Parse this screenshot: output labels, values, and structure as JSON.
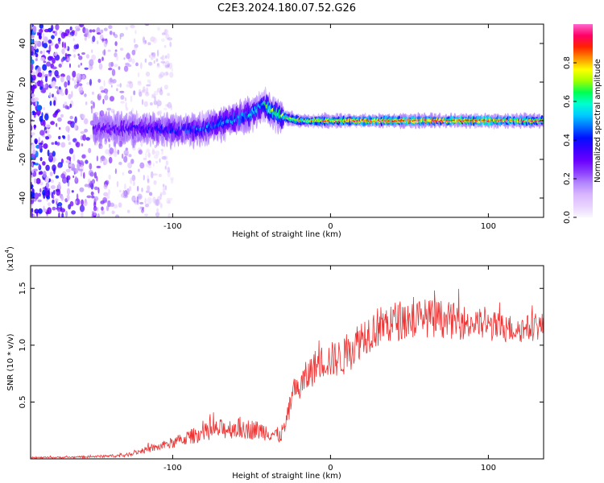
{
  "figure": {
    "title": "C2E3.2024.180.07.52.G26"
  },
  "colors": {
    "snr_line": "#ee3333",
    "frame": "#000000",
    "colormap": [
      "#f8f8ff",
      "#e8d2ff",
      "#d9b7ff",
      "#b487ff",
      "#8a3cff",
      "#6a00ff",
      "#3a00ff",
      "#0010ff",
      "#0070ff",
      "#00ccff",
      "#00ffd0",
      "#00ff50",
      "#a0ff00",
      "#ffff00",
      "#ff9000",
      "#ff2200",
      "#ff0066",
      "#ff66cc"
    ]
  },
  "chart_data": [
    {
      "type": "heatmap",
      "title": "C2E3.2024.180.07.52.G26",
      "xlabel": "Height of straight line (km)",
      "ylabel": "Frequency (Hz)",
      "xlim": [
        -190,
        135
      ],
      "ylim": [
        -50,
        50
      ],
      "xticks": [
        -100,
        0,
        100
      ],
      "yticks": [
        -40,
        -20,
        0,
        20,
        40
      ],
      "xtick_labels": [
        "-100",
        "0",
        "100"
      ],
      "ytick_labels": [
        "-40",
        "-20",
        "0",
        "20",
        "40"
      ],
      "colorbar": {
        "label": "Normalized spectral amplitude",
        "range": [
          0.0,
          1.0
        ],
        "ticks": [
          "0.0",
          "0.2",
          "0.4",
          "0.6",
          "0.8"
        ]
      },
      "signal_trace": {
        "x": [
          -150,
          -120,
          -100,
          -80,
          -60,
          -50,
          -42,
          -38,
          -30,
          -20,
          -10,
          0,
          20,
          50,
          100,
          135
        ],
        "frequency": [
          -4,
          -4,
          -5,
          -4,
          1,
          4,
          8,
          5,
          2,
          0,
          0,
          0,
          0,
          0,
          0,
          0
        ],
        "peak_amplitude": [
          0.3,
          0.35,
          0.4,
          0.45,
          0.5,
          0.55,
          0.55,
          0.65,
          0.7,
          0.75,
          0.8,
          0.85,
          0.9,
          0.9,
          0.9,
          0.85
        ]
      },
      "noise_region": {
        "x_start": -190,
        "x_end": -120,
        "frequency_span": [
          -50,
          50
        ]
      }
    },
    {
      "type": "line",
      "xlabel": "Height of straight line (km)",
      "ylabel": "SNR (10 * v/v)",
      "y_multiplier": "(x10",
      "y_multiplier_exponent": "4",
      "y_multiplier_close": ")",
      "xlim": [
        -190,
        135
      ],
      "ylim": [
        0,
        17000
      ],
      "xticks": [
        -100,
        0,
        100
      ],
      "yticks": [
        5000,
        10000,
        15000
      ],
      "xtick_labels": [
        "-100",
        "0",
        "100"
      ],
      "ytick_labels": [
        "0.5",
        "1.0",
        "1.5"
      ],
      "series": [
        {
          "x": [
            -190,
            -160,
            -130,
            -120,
            -110,
            -100,
            -90,
            -80,
            -70,
            -60,
            -50,
            -40,
            -32,
            -28,
            -25,
            -20,
            -15,
            -10,
            -5,
            0,
            10,
            20,
            30,
            40,
            50,
            60,
            70,
            80,
            90,
            100,
            110,
            120,
            135
          ],
          "values": [
            100,
            150,
            300,
            700,
            1000,
            1400,
            1900,
            2300,
            2600,
            2700,
            2600,
            2400,
            2000,
            3000,
            5200,
            6200,
            7200,
            8100,
            8600,
            8700,
            9000,
            10800,
            11600,
            12100,
            12300,
            12400,
            12300,
            12100,
            11900,
            11700,
            11500,
            11400,
            11700
          ],
          "jitter": [
            60,
            80,
            150,
            250,
            350,
            500,
            650,
            800,
            900,
            900,
            900,
            800,
            700,
            900,
            1300,
            1400,
            1500,
            1500,
            1500,
            1600,
            1700,
            1800,
            1800,
            1800,
            1800,
            1700,
            1700,
            1600,
            1500,
            1400,
            1300,
            1200,
            1200
          ]
        }
      ]
    }
  ]
}
